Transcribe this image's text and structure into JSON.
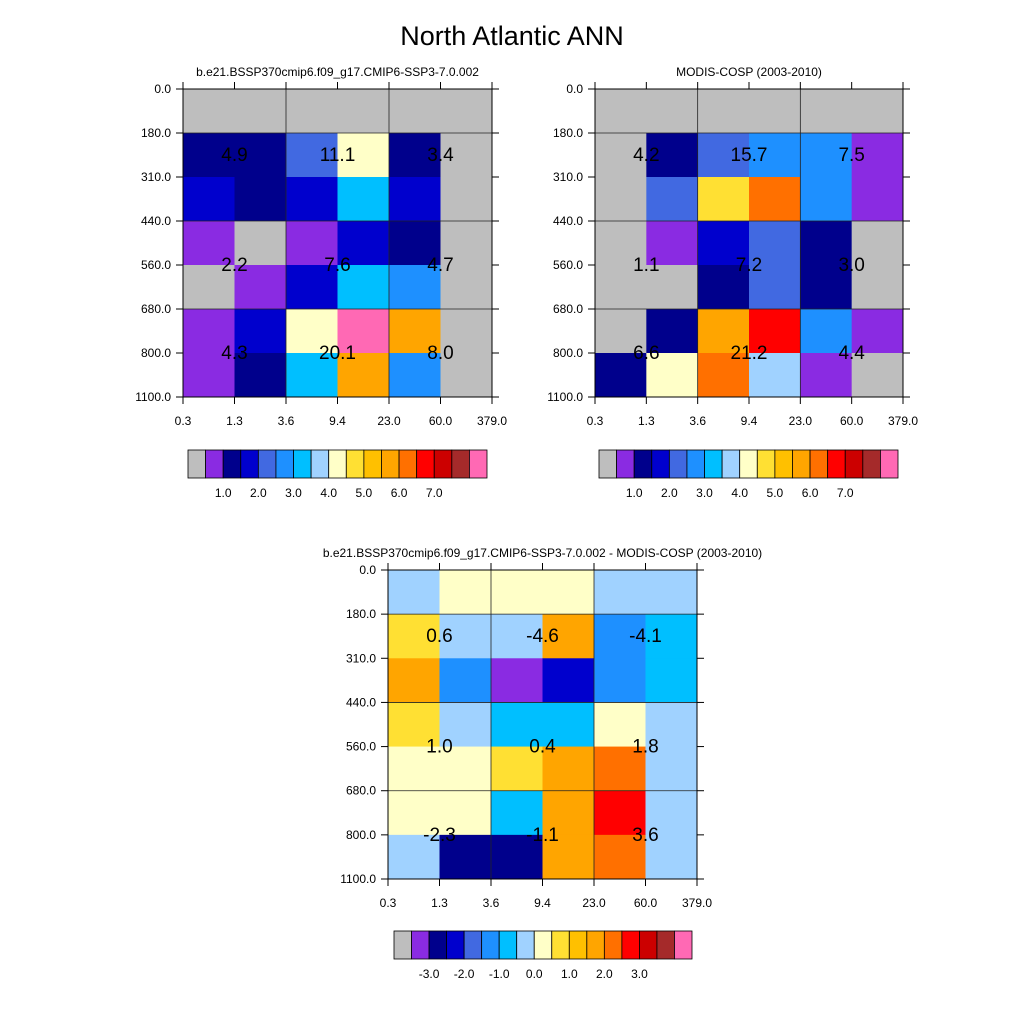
{
  "page": {
    "title": "North Atlantic ANN"
  },
  "chart_data": [
    {
      "type": "heatmap",
      "id": "model",
      "title": "b.e21.BSSP370cmip6.f09_g17.CMIP6-SSP3-7.0.002",
      "xlabel": "",
      "ylabel": "",
      "x_tick_labels": [
        "0.3",
        "1.3",
        "3.6",
        "9.4",
        "23.0",
        "60.0",
        "379.0"
      ],
      "y_tick_labels": [
        "0.0",
        "180.0",
        "310.0",
        "440.0",
        "560.0",
        "680.0",
        "800.0",
        "1100.0"
      ],
      "cell_colors": [
        [
          "#bebebe",
          "#bebebe",
          "#bebebe",
          "#bebebe",
          "#bebebe",
          "#bebebe"
        ],
        [
          "#00008c",
          "#00008c",
          "#4169e1",
          "#ffffc8",
          "#00008c",
          "#bebebe"
        ],
        [
          "#0000cd",
          "#00008c",
          "#0000cd",
          "#00bfff",
          "#0000cd",
          "#bebebe"
        ],
        [
          "#8a2be2",
          "#bebebe",
          "#8a2be2",
          "#0000cd",
          "#00008c",
          "#bebebe"
        ],
        [
          "#bebebe",
          "#8a2be2",
          "#0000cd",
          "#00bfff",
          "#1e90ff",
          "#bebebe"
        ],
        [
          "#8a2be2",
          "#0000cd",
          "#ffffc8",
          "#ff69b4",
          "#ffa500",
          "#bebebe"
        ],
        [
          "#8a2be2",
          "#00008c",
          "#00bfff",
          "#ffa500",
          "#1e90ff",
          "#bebebe"
        ]
      ],
      "annotations": [
        {
          "text": "4.9",
          "bin_x": 0.5,
          "bin_y": 1.5
        },
        {
          "text": "11.1",
          "bin_x": 2.5,
          "bin_y": 1.5
        },
        {
          "text": "3.4",
          "bin_x": 4.5,
          "bin_y": 1.5
        },
        {
          "text": "2.2",
          "bin_x": 0.5,
          "bin_y": 4.0
        },
        {
          "text": "7.6",
          "bin_x": 2.5,
          "bin_y": 4.0
        },
        {
          "text": "4.7",
          "bin_x": 4.5,
          "bin_y": 4.0
        },
        {
          "text": "4.3",
          "bin_x": 0.5,
          "bin_y": 6.0
        },
        {
          "text": "20.1",
          "bin_x": 2.5,
          "bin_y": 6.0
        },
        {
          "text": "8.0",
          "bin_x": 4.5,
          "bin_y": 6.0
        }
      ],
      "colorbar": {
        "colors": [
          "#bebebe",
          "#8a2be2",
          "#00008c",
          "#0000cd",
          "#4169e1",
          "#1e90ff",
          "#00bfff",
          "#a0d2ff",
          "#ffffc8",
          "#ffe033",
          "#ffc000",
          "#ffa500",
          "#ff7000",
          "#ff0000",
          "#cc0000",
          "#a52a2a",
          "#ff69b4"
        ],
        "labels": [
          "1.0",
          "2.0",
          "3.0",
          "4.0",
          "5.0",
          "6.0",
          "7.0"
        ],
        "label_boundary_start": 2,
        "label_boundary_step": 2
      }
    },
    {
      "type": "heatmap",
      "id": "obs",
      "title": "MODIS-COSP (2003-2010)",
      "xlabel": "",
      "ylabel": "",
      "x_tick_labels": [
        "0.3",
        "1.3",
        "3.6",
        "9.4",
        "23.0",
        "60.0",
        "379.0"
      ],
      "y_tick_labels": [
        "0.0",
        "180.0",
        "310.0",
        "440.0",
        "560.0",
        "680.0",
        "800.0",
        "1100.0"
      ],
      "cell_colors": [
        [
          "#bebebe",
          "#bebebe",
          "#bebebe",
          "#bebebe",
          "#bebebe",
          "#bebebe"
        ],
        [
          "#bebebe",
          "#00008c",
          "#4169e1",
          "#1e90ff",
          "#1e90ff",
          "#8a2be2"
        ],
        [
          "#bebebe",
          "#4169e1",
          "#ffe033",
          "#ff7000",
          "#1e90ff",
          "#8a2be2"
        ],
        [
          "#bebebe",
          "#8a2be2",
          "#0000cd",
          "#4169e1",
          "#00008c",
          "#bebebe"
        ],
        [
          "#bebebe",
          "#bebebe",
          "#00008c",
          "#4169e1",
          "#00008c",
          "#bebebe"
        ],
        [
          "#bebebe",
          "#00008c",
          "#ffa500",
          "#ff0000",
          "#1e90ff",
          "#8a2be2"
        ],
        [
          "#00008c",
          "#ffffc8",
          "#ff7000",
          "#a0d2ff",
          "#8a2be2",
          "#bebebe"
        ]
      ],
      "annotations": [
        {
          "text": "4.2",
          "bin_x": 0.5,
          "bin_y": 1.5
        },
        {
          "text": "15.7",
          "bin_x": 2.5,
          "bin_y": 1.5
        },
        {
          "text": "7.5",
          "bin_x": 4.5,
          "bin_y": 1.5
        },
        {
          "text": "1.1",
          "bin_x": 0.5,
          "bin_y": 4.0
        },
        {
          "text": "7.2",
          "bin_x": 2.5,
          "bin_y": 4.0
        },
        {
          "text": "3.0",
          "bin_x": 4.5,
          "bin_y": 4.0
        },
        {
          "text": "6.6",
          "bin_x": 0.5,
          "bin_y": 6.0
        },
        {
          "text": "21.2",
          "bin_x": 2.5,
          "bin_y": 6.0
        },
        {
          "text": "4.4",
          "bin_x": 4.5,
          "bin_y": 6.0
        }
      ],
      "colorbar": {
        "colors": [
          "#bebebe",
          "#8a2be2",
          "#00008c",
          "#0000cd",
          "#4169e1",
          "#1e90ff",
          "#00bfff",
          "#a0d2ff",
          "#ffffc8",
          "#ffe033",
          "#ffc000",
          "#ffa500",
          "#ff7000",
          "#ff0000",
          "#cc0000",
          "#a52a2a",
          "#ff69b4"
        ],
        "labels": [
          "1.0",
          "2.0",
          "3.0",
          "4.0",
          "5.0",
          "6.0",
          "7.0"
        ],
        "label_boundary_start": 2,
        "label_boundary_step": 2
      }
    },
    {
      "type": "heatmap",
      "id": "diff",
      "title": "b.e21.BSSP370cmip6.f09_g17.CMIP6-SSP3-7.0.002 - MODIS-COSP (2003-2010)",
      "xlabel": "",
      "ylabel": "",
      "x_tick_labels": [
        "0.3",
        "1.3",
        "3.6",
        "9.4",
        "23.0",
        "60.0",
        "379.0"
      ],
      "y_tick_labels": [
        "0.0",
        "180.0",
        "310.0",
        "440.0",
        "560.0",
        "680.0",
        "800.0",
        "1100.0"
      ],
      "cell_colors": [
        [
          "#a0d2ff",
          "#ffffc8",
          "#ffffc8",
          "#ffffc8",
          "#a0d2ff",
          "#a0d2ff"
        ],
        [
          "#ffe033",
          "#a0d2ff",
          "#a0d2ff",
          "#ffa500",
          "#1e90ff",
          "#00bfff"
        ],
        [
          "#ffa500",
          "#1e90ff",
          "#8a2be2",
          "#0000cd",
          "#1e90ff",
          "#00bfff"
        ],
        [
          "#ffe033",
          "#a0d2ff",
          "#00bfff",
          "#00bfff",
          "#ffffc8",
          "#a0d2ff"
        ],
        [
          "#ffffc8",
          "#ffffc8",
          "#ffe033",
          "#ffa500",
          "#ff7000",
          "#a0d2ff"
        ],
        [
          "#ffffc8",
          "#ffffc8",
          "#00bfff",
          "#ffa500",
          "#ff0000",
          "#a0d2ff"
        ],
        [
          "#a0d2ff",
          "#00008c",
          "#00008c",
          "#ffa500",
          "#ff7000",
          "#a0d2ff"
        ]
      ],
      "annotations": [
        {
          "text": "0.6",
          "bin_x": 0.5,
          "bin_y": 1.5
        },
        {
          "text": "-4.6",
          "bin_x": 2.5,
          "bin_y": 1.5
        },
        {
          "text": "-4.1",
          "bin_x": 4.5,
          "bin_y": 1.5
        },
        {
          "text": "1.0",
          "bin_x": 0.5,
          "bin_y": 4.0
        },
        {
          "text": "0.4",
          "bin_x": 2.5,
          "bin_y": 4.0
        },
        {
          "text": "1.8",
          "bin_x": 4.5,
          "bin_y": 4.0
        },
        {
          "text": "-2.3",
          "bin_x": 0.5,
          "bin_y": 6.0
        },
        {
          "text": "-1.1",
          "bin_x": 2.5,
          "bin_y": 6.0
        },
        {
          "text": "3.6",
          "bin_x": 4.5,
          "bin_y": 6.0
        }
      ],
      "colorbar": {
        "colors": [
          "#bebebe",
          "#8a2be2",
          "#00008c",
          "#0000cd",
          "#4169e1",
          "#1e90ff",
          "#00bfff",
          "#a0d2ff",
          "#ffffc8",
          "#ffe033",
          "#ffc000",
          "#ffa500",
          "#ff7000",
          "#ff0000",
          "#cc0000",
          "#a52a2a",
          "#ff69b4"
        ],
        "labels": [
          "-3.0",
          "-2.0",
          "-1.0",
          "0.0",
          "1.0",
          "2.0",
          "3.0"
        ],
        "label_boundary_start": 2,
        "label_boundary_step": 2
      }
    }
  ]
}
